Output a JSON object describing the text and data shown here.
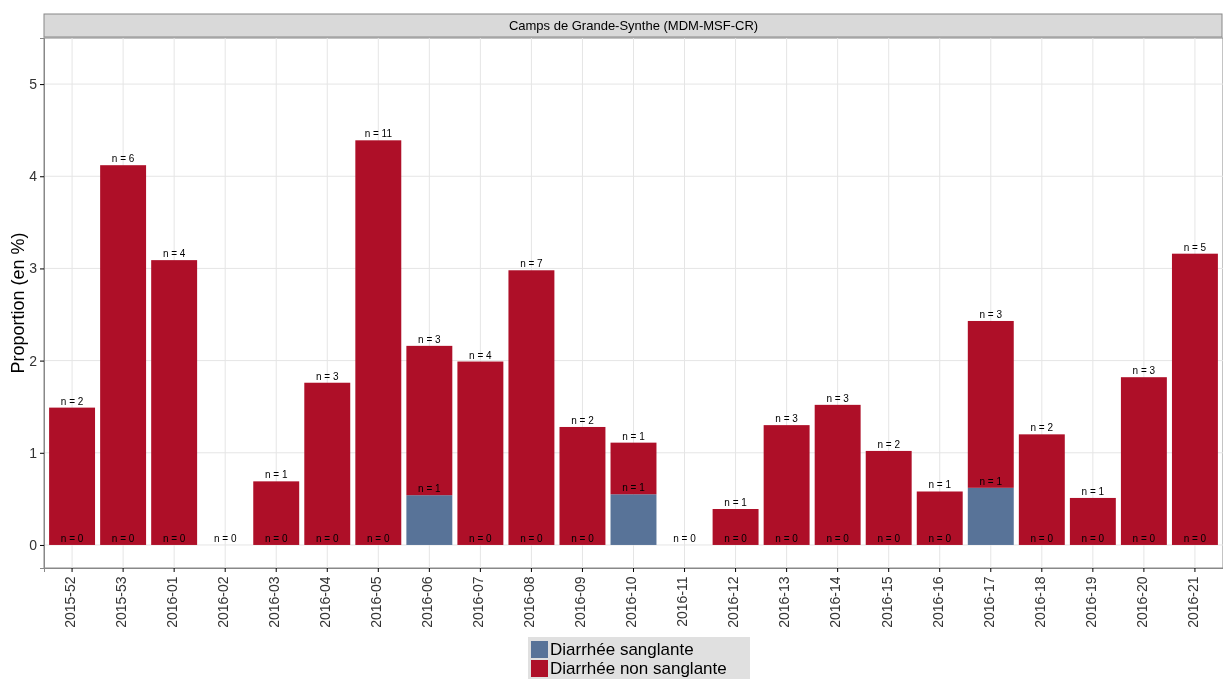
{
  "chart_data": {
    "type": "bar",
    "title": "Camps de Grande-Synthe (MDM-MSF-CR)",
    "ylabel": "Proportion (en %)",
    "categories": [
      "2015-52",
      "2015-53",
      "2016-01",
      "2016-02",
      "2016-03",
      "2016-04",
      "2016-05",
      "2016-06",
      "2016-07",
      "2016-08",
      "2016-09",
      "2016-10",
      "2016-11",
      "2016-12",
      "2016-13",
      "2016-14",
      "2016-15",
      "2016-16",
      "2016-17",
      "2016-18",
      "2016-19",
      "2016-20",
      "2016-21"
    ],
    "stacked": true,
    "ylim": [
      -0.25,
      5.5
    ],
    "yticks": [
      0,
      1,
      2,
      3,
      4,
      5
    ],
    "grid": true,
    "legend": "bottom",
    "series": [
      {
        "name": "Diarrhée sanglante",
        "color": "#587398",
        "values": [
          0,
          0,
          0,
          0,
          0,
          0,
          0,
          0.54,
          0,
          0,
          0,
          0.55,
          0,
          0,
          0,
          0,
          0,
          0,
          0.62,
          0,
          0,
          0,
          0
        ]
      },
      {
        "name": "Diarrhée non sanglante",
        "color": "#ae0f28",
        "values": [
          1.49,
          4.12,
          3.09,
          0,
          0.69,
          1.76,
          4.39,
          1.62,
          1.99,
          2.98,
          1.28,
          0.56,
          0,
          0.39,
          1.3,
          1.52,
          1.02,
          0.58,
          1.81,
          1.2,
          0.51,
          1.82,
          3.16
        ]
      }
    ],
    "annotations": [
      {
        "text": "n = 0",
        "x": "2015-52",
        "y": 0
      },
      {
        "text": "n = 0",
        "x": "2015-53",
        "y": 0
      },
      {
        "text": "n = 0",
        "x": "2016-01",
        "y": 0
      },
      {
        "text": "n = 0",
        "x": "2016-02",
        "y": 0
      },
      {
        "text": "n = 0",
        "x": "2016-03",
        "y": 0
      },
      {
        "text": "n = 0",
        "x": "2016-04",
        "y": 0
      },
      {
        "text": "n = 0",
        "x": "2016-05",
        "y": 0
      },
      {
        "text": "n = 1",
        "x": "2016-06",
        "y": 0.54
      },
      {
        "text": "n = 0",
        "x": "2016-07",
        "y": 0
      },
      {
        "text": "n = 0",
        "x": "2016-08",
        "y": 0
      },
      {
        "text": "n = 0",
        "x": "2016-09",
        "y": 0
      },
      {
        "text": "n = 1",
        "x": "2016-10",
        "y": 0.55
      },
      {
        "text": "n = 0",
        "x": "2016-11",
        "y": 0
      },
      {
        "text": "n = 0",
        "x": "2016-12",
        "y": 0
      },
      {
        "text": "n = 0",
        "x": "2016-13",
        "y": 0
      },
      {
        "text": "n = 0",
        "x": "2016-14",
        "y": 0
      },
      {
        "text": "n = 0",
        "x": "2016-15",
        "y": 0
      },
      {
        "text": "n = 0",
        "x": "2016-16",
        "y": 0
      },
      {
        "text": "n = 1",
        "x": "2016-17",
        "y": 0.62
      },
      {
        "text": "n = 0",
        "x": "2016-18",
        "y": 0
      },
      {
        "text": "n = 0",
        "x": "2016-19",
        "y": 0
      },
      {
        "text": "n = 0",
        "x": "2016-20",
        "y": 0
      },
      {
        "text": "n = 0",
        "x": "2016-21",
        "y": 0
      },
      {
        "text": "n = 2",
        "x": "2015-52",
        "y": 1.49
      },
      {
        "text": "n = 6",
        "x": "2015-53",
        "y": 4.12
      },
      {
        "text": "n = 4",
        "x": "2016-01",
        "y": 3.09
      },
      {
        "text": "n = 1",
        "x": "2016-03",
        "y": 0.69
      },
      {
        "text": "n = 3",
        "x": "2016-04",
        "y": 1.76
      },
      {
        "text": "n = 11",
        "x": "2016-05",
        "y": 4.39
      },
      {
        "text": "n = 3",
        "x": "2016-06",
        "y": 2.16
      },
      {
        "text": "n = 4",
        "x": "2016-07",
        "y": 1.99
      },
      {
        "text": "n = 7",
        "x": "2016-08",
        "y": 2.98
      },
      {
        "text": "n = 2",
        "x": "2016-09",
        "y": 1.28
      },
      {
        "text": "n = 1",
        "x": "2016-10",
        "y": 1.11
      },
      {
        "text": "n = 1",
        "x": "2016-12",
        "y": 0.39
      },
      {
        "text": "n = 3",
        "x": "2016-13",
        "y": 1.3
      },
      {
        "text": "n = 3",
        "x": "2016-14",
        "y": 1.52
      },
      {
        "text": "n = 2",
        "x": "2016-15",
        "y": 1.02
      },
      {
        "text": "n = 1",
        "x": "2016-16",
        "y": 0.58
      },
      {
        "text": "n = 3",
        "x": "2016-17",
        "y": 2.43
      },
      {
        "text": "n = 2",
        "x": "2016-18",
        "y": 1.2
      },
      {
        "text": "n = 1",
        "x": "2016-19",
        "y": 0.51
      },
      {
        "text": "n = 3",
        "x": "2016-20",
        "y": 1.82
      },
      {
        "text": "n = 5",
        "x": "2016-21",
        "y": 3.16
      }
    ]
  }
}
